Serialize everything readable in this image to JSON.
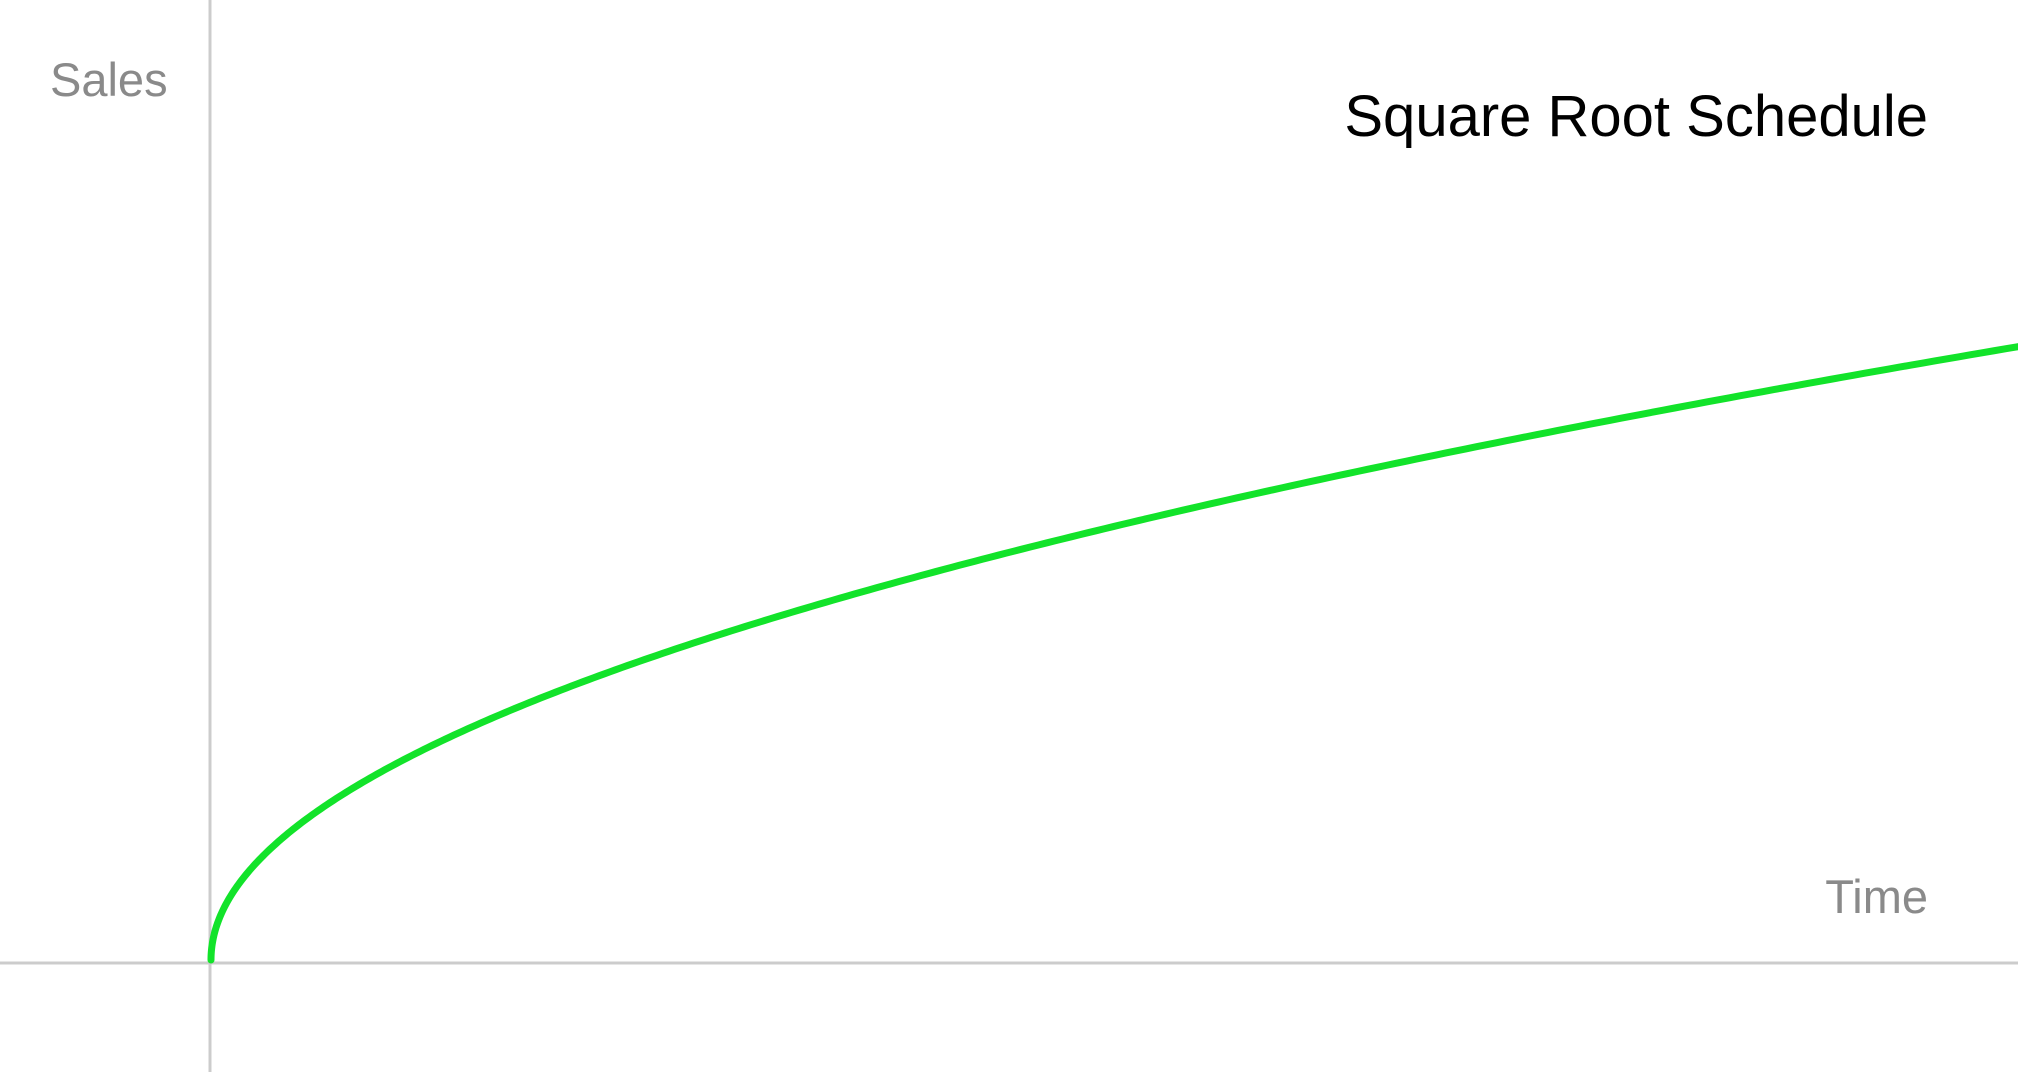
{
  "chart_data": {
    "type": "line",
    "title": "Square Root Schedule",
    "xlabel": "Time",
    "ylabel": "Sales",
    "function": "square root",
    "series": [
      {
        "x": [
          0,
          0.05,
          0.1,
          0.2,
          0.3,
          0.4,
          0.5,
          0.6,
          0.7,
          0.8,
          0.9,
          1.0
        ],
        "values": [
          0,
          0.224,
          0.316,
          0.447,
          0.548,
          0.632,
          0.707,
          0.775,
          0.837,
          0.894,
          0.949,
          1.0
        ]
      }
    ],
    "xlim": [
      0,
      1
    ],
    "ylim": [
      0,
      1.5
    ],
    "grid": false,
    "legend": "none",
    "colors": {
      "line": "#12e32a",
      "axis": "#cccccc",
      "axis_label": "#8a8a8a",
      "title": "#000000"
    }
  }
}
